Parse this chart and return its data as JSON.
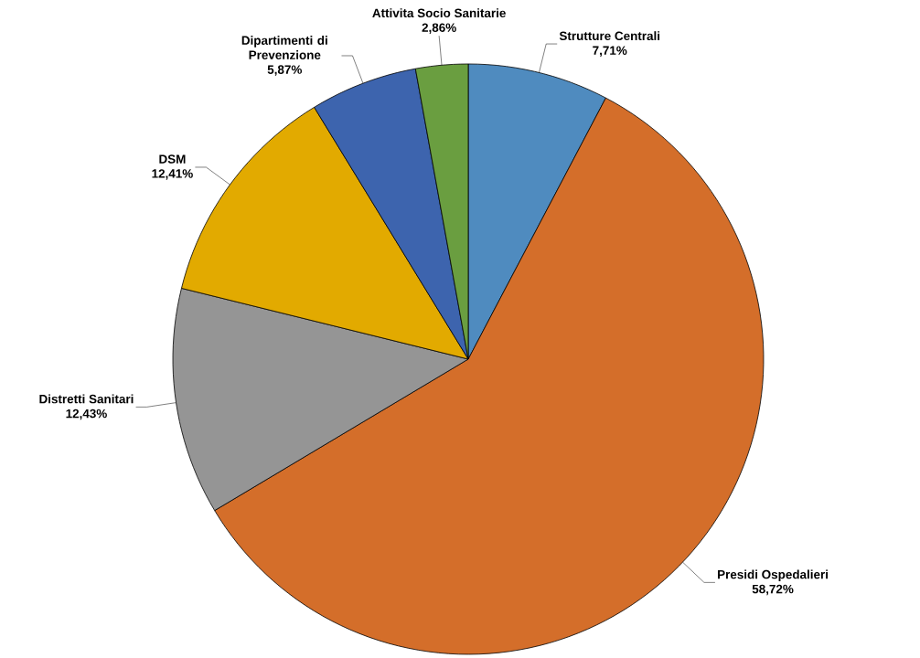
{
  "chart_data": {
    "type": "pie",
    "categories": [
      "Strutture Centrali",
      "Presidi Ospedalieri",
      "Distretti Sanitari",
      "DSM",
      "Dipartimenti di Prevenzione",
      "Attivita Socio Sanitarie"
    ],
    "values": [
      7.71,
      58.72,
      12.43,
      12.41,
      5.87,
      2.86
    ],
    "colors": [
      "#4f8bbf",
      "#d46e2a",
      "#959595",
      "#e2aa00",
      "#3d64ae",
      "#6a9e40"
    ],
    "value_labels": [
      "7,71%",
      "58,72%",
      "12,43%",
      "12,41%",
      "5,87%",
      "2,86%"
    ]
  }
}
